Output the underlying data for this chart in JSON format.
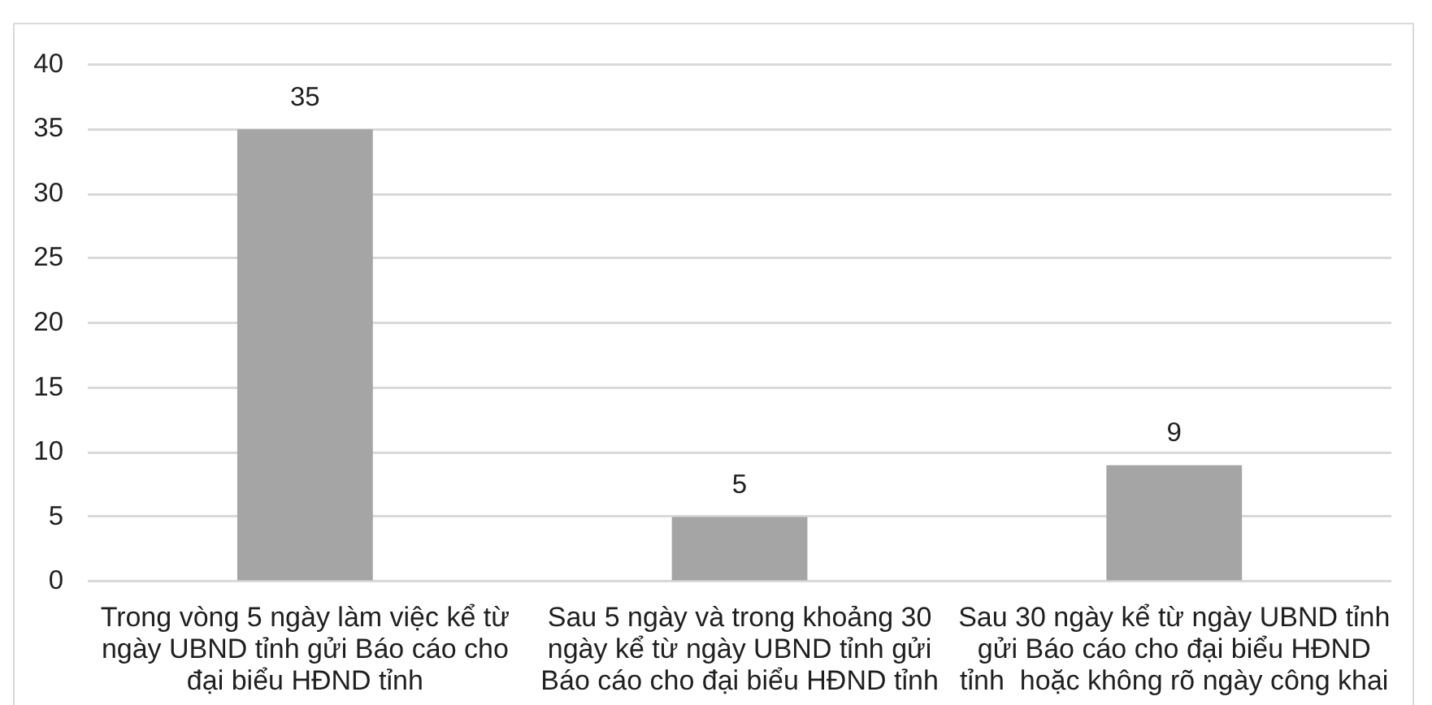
{
  "chart_data": {
    "type": "bar",
    "categories": [
      "Trong vòng 5 ngày làm việc kể từ ngày UBND tỉnh gửi Báo cáo cho đại biểu HĐND tỉnh",
      "Sau 5 ngày và trong khoảng 30 ngày kể từ ngày UBND tỉnh gửi Báo cáo cho đại biểu HĐND tỉnh",
      "Sau 30 ngày kể từ ngày UBND tỉnh gửi Báo cáo cho đại biểu HĐND tỉnh  hoặc không rõ ngày công khai"
    ],
    "values": [
      35,
      5,
      9
    ],
    "color": "#a5a5a5",
    "ylim": [
      0,
      40
    ],
    "yticks": [
      0,
      5,
      10,
      15,
      20,
      25,
      30,
      35,
      40
    ],
    "grid": "y",
    "data_labels": true
  }
}
